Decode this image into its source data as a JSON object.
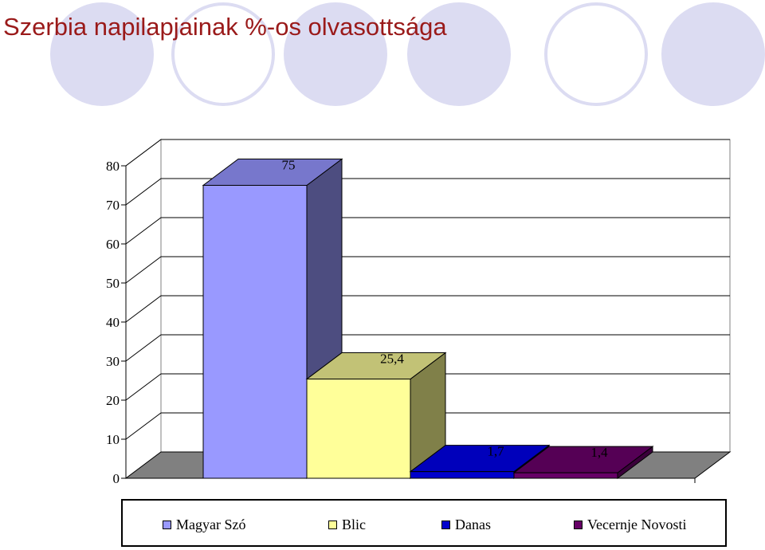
{
  "title": "Szerbia napilapjainak %-os olvasottsága",
  "colors": {
    "title": "#9a1a1a",
    "decor_circle_fill": "#dcdcf2",
    "floor": "#808080"
  },
  "chart_data": {
    "type": "bar",
    "categories": [
      "Magyar Szó",
      "Blic",
      "Danas",
      "Vecernje Novosti"
    ],
    "values": [
      75,
      25.4,
      1.7,
      1.4
    ],
    "data_labels": [
      "75",
      "25,4",
      "1,7",
      "1,4"
    ],
    "yticks": [
      "0",
      "10",
      "20",
      "30",
      "40",
      "50",
      "60",
      "70",
      "80"
    ],
    "ylim": [
      0,
      80
    ],
    "grid": true,
    "style": "3d",
    "legend_position": "bottom",
    "series_colors": [
      {
        "front": "#9999ff",
        "top": "#7777cc",
        "side": "#4d4d80"
      },
      {
        "front": "#ffff99",
        "top": "#c2c276",
        "side": "#808049"
      },
      {
        "front": "#0000cc",
        "top": "#0000bb",
        "side": "#000080"
      },
      {
        "front": "#660066",
        "top": "#550055",
        "side": "#3a003a"
      }
    ]
  },
  "legend": {
    "items": [
      {
        "label": "Magyar Szó",
        "color": "#9999ff"
      },
      {
        "label": "Blic",
        "color": "#ffff99"
      },
      {
        "label": "Danas",
        "color": "#0000cc"
      },
      {
        "label": "Vecernje Novosti",
        "color": "#660066"
      }
    ]
  }
}
